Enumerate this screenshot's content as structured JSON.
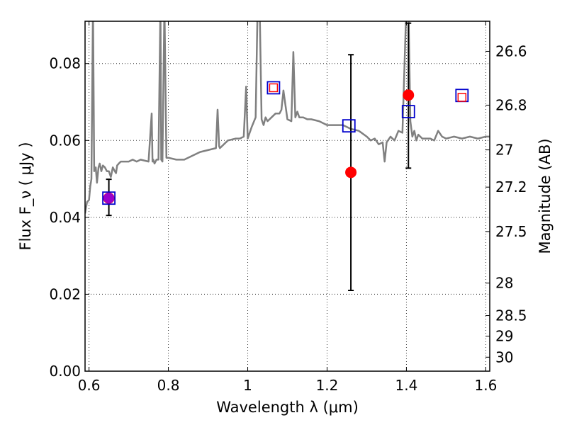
{
  "chart_data": {
    "type": "scatter",
    "xlabel": "Wavelength  λ (μm)",
    "ylabel": "Flux  F_ν  ( μJy )",
    "ylabel_right": "Magnitude (AB)",
    "xlim": [
      0.59,
      1.61
    ],
    "ylim": [
      0.0,
      0.091
    ],
    "x_ticks": [
      {
        "value": 0.6,
        "label": "0.6"
      },
      {
        "value": 0.8,
        "label": "0.8"
      },
      {
        "value": 1.0,
        "label": "1"
      },
      {
        "value": 1.2,
        "label": "1.2"
      },
      {
        "value": 1.4,
        "label": "1.4"
      },
      {
        "value": 1.6,
        "label": "1.6"
      }
    ],
    "y_ticks": [
      {
        "value": 0.0,
        "label": "0.00"
      },
      {
        "value": 0.02,
        "label": "0.02"
      },
      {
        "value": 0.04,
        "label": "0.04"
      },
      {
        "value": 0.06,
        "label": "0.06"
      },
      {
        "value": 0.08,
        "label": "0.08"
      }
    ],
    "mag_ticks": [
      {
        "value": 26.6,
        "label": "26.6"
      },
      {
        "value": 26.8,
        "label": "26.8"
      },
      {
        "value": 27.0,
        "label": "27"
      },
      {
        "value": 27.2,
        "label": "27.2"
      },
      {
        "value": 27.5,
        "label": "27.5"
      },
      {
        "value": 28.0,
        "label": "28"
      },
      {
        "value": 28.5,
        "label": "28.5"
      },
      {
        "value": 29.0,
        "label": "29"
      },
      {
        "value": 30.0,
        "label": "30"
      }
    ],
    "grid": true,
    "series": [
      {
        "kind": "spectrum",
        "color": "#808080",
        "x": [
          0.59,
          0.595,
          0.6,
          0.603,
          0.606,
          0.61,
          0.613,
          0.617,
          0.62,
          0.624,
          0.627,
          0.631,
          0.635,
          0.64,
          0.645,
          0.65,
          0.655,
          0.66,
          0.665,
          0.668,
          0.671,
          0.675,
          0.68,
          0.69,
          0.7,
          0.71,
          0.72,
          0.73,
          0.75,
          0.758,
          0.76,
          0.762,
          0.765,
          0.77,
          0.775,
          0.78,
          0.782,
          0.785,
          0.79,
          0.795,
          0.8,
          0.82,
          0.84,
          0.86,
          0.88,
          0.9,
          0.92,
          0.924,
          0.928,
          0.93,
          0.95,
          0.97,
          0.98,
          0.99,
          0.996,
          1.0,
          1.005,
          1.01,
          1.02,
          1.025,
          1.03,
          1.035,
          1.04,
          1.045,
          1.05,
          1.06,
          1.07,
          1.08,
          1.085,
          1.09,
          1.1,
          1.11,
          1.115,
          1.12,
          1.125,
          1.13,
          1.14,
          1.15,
          1.16,
          1.18,
          1.2,
          1.22,
          1.24,
          1.26,
          1.28,
          1.3,
          1.31,
          1.32,
          1.33,
          1.34,
          1.345,
          1.35,
          1.36,
          1.37,
          1.38,
          1.39,
          1.4,
          1.405,
          1.41,
          1.415,
          1.42,
          1.425,
          1.43,
          1.44,
          1.45,
          1.46,
          1.47,
          1.48,
          1.49,
          1.5,
          1.52,
          1.54,
          1.56,
          1.58,
          1.6,
          1.61
        ],
        "y": [
          0.041,
          0.044,
          0.0445,
          0.048,
          0.05,
          0.0955,
          0.052,
          0.053,
          0.049,
          0.053,
          0.054,
          0.052,
          0.0535,
          0.053,
          0.052,
          0.052,
          0.0505,
          0.053,
          0.052,
          0.0515,
          0.0535,
          0.054,
          0.0545,
          0.0545,
          0.0545,
          0.055,
          0.0545,
          0.055,
          0.0545,
          0.067,
          0.0545,
          0.055,
          0.054,
          0.055,
          0.055,
          0.0955,
          0.055,
          0.0545,
          0.0955,
          0.0555,
          0.0555,
          0.055,
          0.055,
          0.056,
          0.057,
          0.0575,
          0.058,
          0.068,
          0.0585,
          0.058,
          0.06,
          0.0605,
          0.0605,
          0.061,
          0.074,
          0.0605,
          0.062,
          0.0635,
          0.066,
          0.0955,
          0.0955,
          0.0655,
          0.064,
          0.066,
          0.065,
          0.066,
          0.067,
          0.067,
          0.068,
          0.073,
          0.0655,
          0.065,
          0.083,
          0.066,
          0.0675,
          0.066,
          0.066,
          0.0655,
          0.0655,
          0.065,
          0.064,
          0.064,
          0.064,
          0.063,
          0.0625,
          0.061,
          0.06,
          0.0605,
          0.059,
          0.0595,
          0.0545,
          0.0595,
          0.061,
          0.06,
          0.0625,
          0.062,
          0.0955,
          0.0955,
          0.065,
          0.061,
          0.0625,
          0.06,
          0.0615,
          0.0605,
          0.0605,
          0.0605,
          0.06,
          0.0625,
          0.061,
          0.0605,
          0.061,
          0.0605,
          0.061,
          0.0605,
          0.061,
          0.061
        ]
      },
      {
        "kind": "points",
        "marker": "circle",
        "color": "#ff0000",
        "x": [
          0.65,
          1.26,
          1.405
        ],
        "y": [
          0.045,
          0.0517,
          0.0718
        ]
      },
      {
        "kind": "points",
        "marker": "square-open",
        "color": "#0000cc",
        "x": [
          0.65,
          1.065,
          1.255,
          1.405,
          1.54
        ],
        "y": [
          0.045,
          0.0737,
          0.0638,
          0.0675,
          0.0717
        ]
      },
      {
        "kind": "points",
        "marker": "square-open-small",
        "color": "#ff0000",
        "x": [
          1.065,
          1.54
        ],
        "y": [
          0.0737,
          0.0712
        ]
      },
      {
        "kind": "errorbars",
        "color": "#000000",
        "points": [
          {
            "x": 0.65,
            "low": 0.0405,
            "high": 0.0499
          },
          {
            "x": 1.26,
            "low": 0.021,
            "high": 0.0823
          },
          {
            "x": 1.405,
            "low": 0.0528,
            "high": 0.0905
          }
        ]
      }
    ],
    "overlap_marker": {
      "x": 0.65,
      "y": 0.045,
      "color": "#9900cc"
    }
  }
}
